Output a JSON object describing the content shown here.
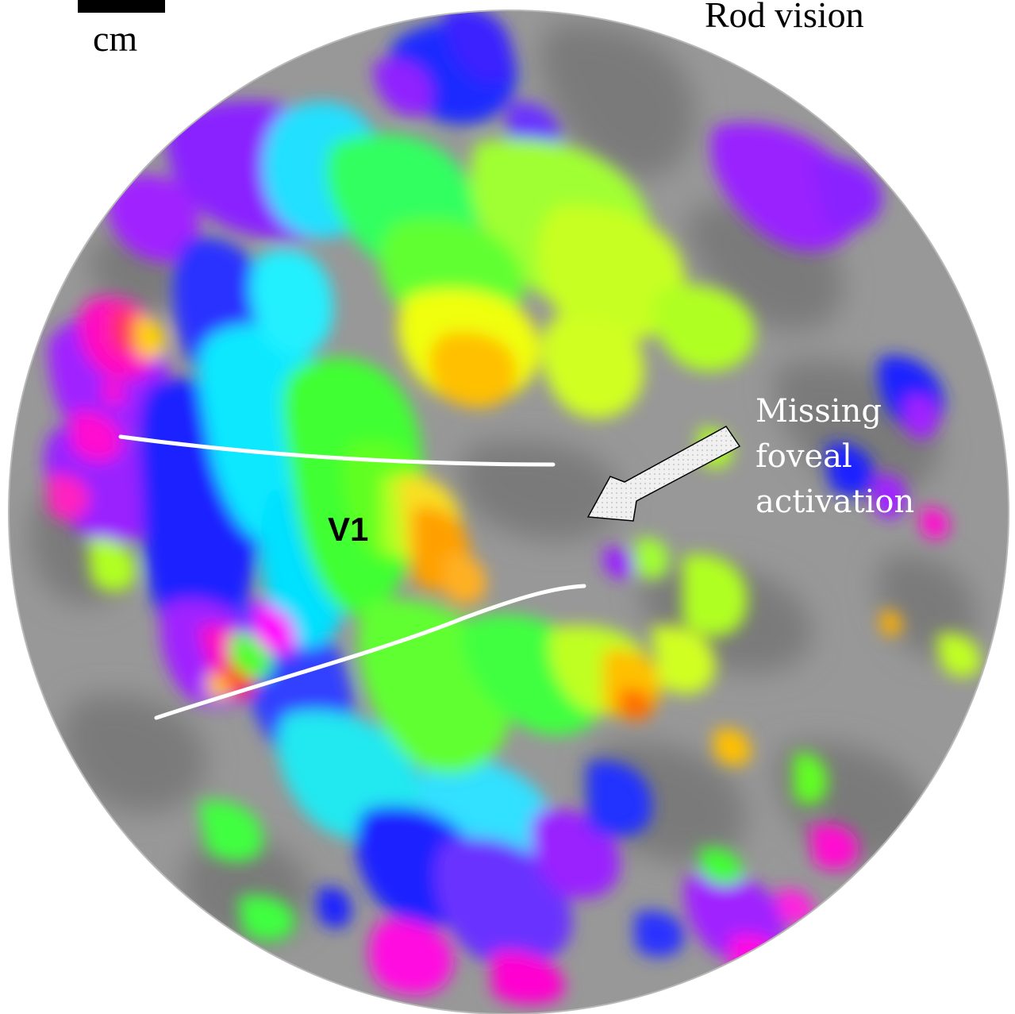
{
  "figure": {
    "title": "Rod vision",
    "scale_label": "cm",
    "region_label": "V1",
    "annotation_lines": [
      "Missing",
      "foveal",
      "activation"
    ]
  },
  "colors": {
    "background": "#ffffff",
    "cortex_light": "#999999",
    "cortex_dark": "#787878",
    "magenta": "#ff00ff",
    "violet": "#9a20ff",
    "blue": "#1a24ff",
    "cyan": "#00f0ff",
    "green": "#50ff20",
    "yellow_green": "#c8ff20",
    "yellow": "#f8ff10",
    "orange": "#ffb000",
    "red": "#ff2010",
    "boundary_line": "#ffffff",
    "arrow_fill": "#eeeeee"
  },
  "icons": {
    "arrow": "arrow-icon",
    "scale_bar": "scale-bar-icon"
  }
}
